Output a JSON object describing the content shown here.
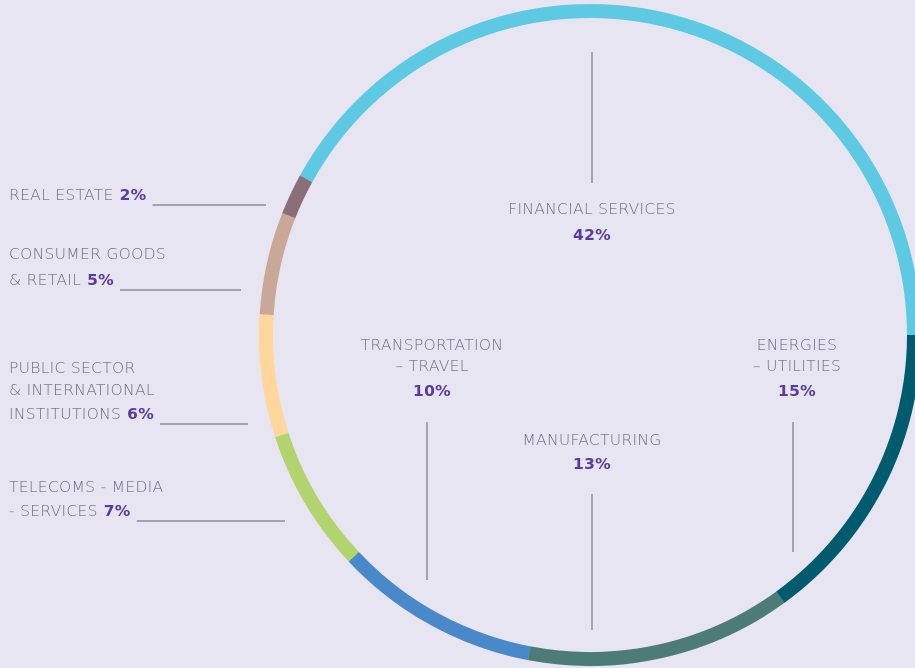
{
  "chart_data": {
    "type": "donut",
    "categories": [
      [
        "FINANCIAL SERVICES"
      ],
      [
        "REAL ESTATE"
      ],
      [
        "CONSUMER GOODS",
        "& RETAIL"
      ],
      [
        "PUBLIC SECTOR",
        "& INTERNATIONAL",
        "INSTITUTIONS"
      ],
      [
        "TELECOMS - MEDIA",
        "- SERVICES"
      ],
      [
        "TRANSPORTATION",
        "– TRAVEL"
      ],
      [
        "MANUFACTURING"
      ],
      [
        "ENERGIES",
        "– UTILITIES"
      ]
    ],
    "values": [
      42,
      2,
      5,
      6,
      7,
      10,
      13,
      15
    ],
    "value_labels": [
      "42%",
      "2%",
      "5%",
      "6%",
      "7%",
      "10%",
      "13%",
      "15%"
    ],
    "colors": [
      "#5ec9e3",
      "#8a6f7b",
      "#c9a898",
      "#ffd69b",
      "#b1d46e",
      "#4a89c9",
      "#4d7b78",
      "#005b6e"
    ]
  }
}
